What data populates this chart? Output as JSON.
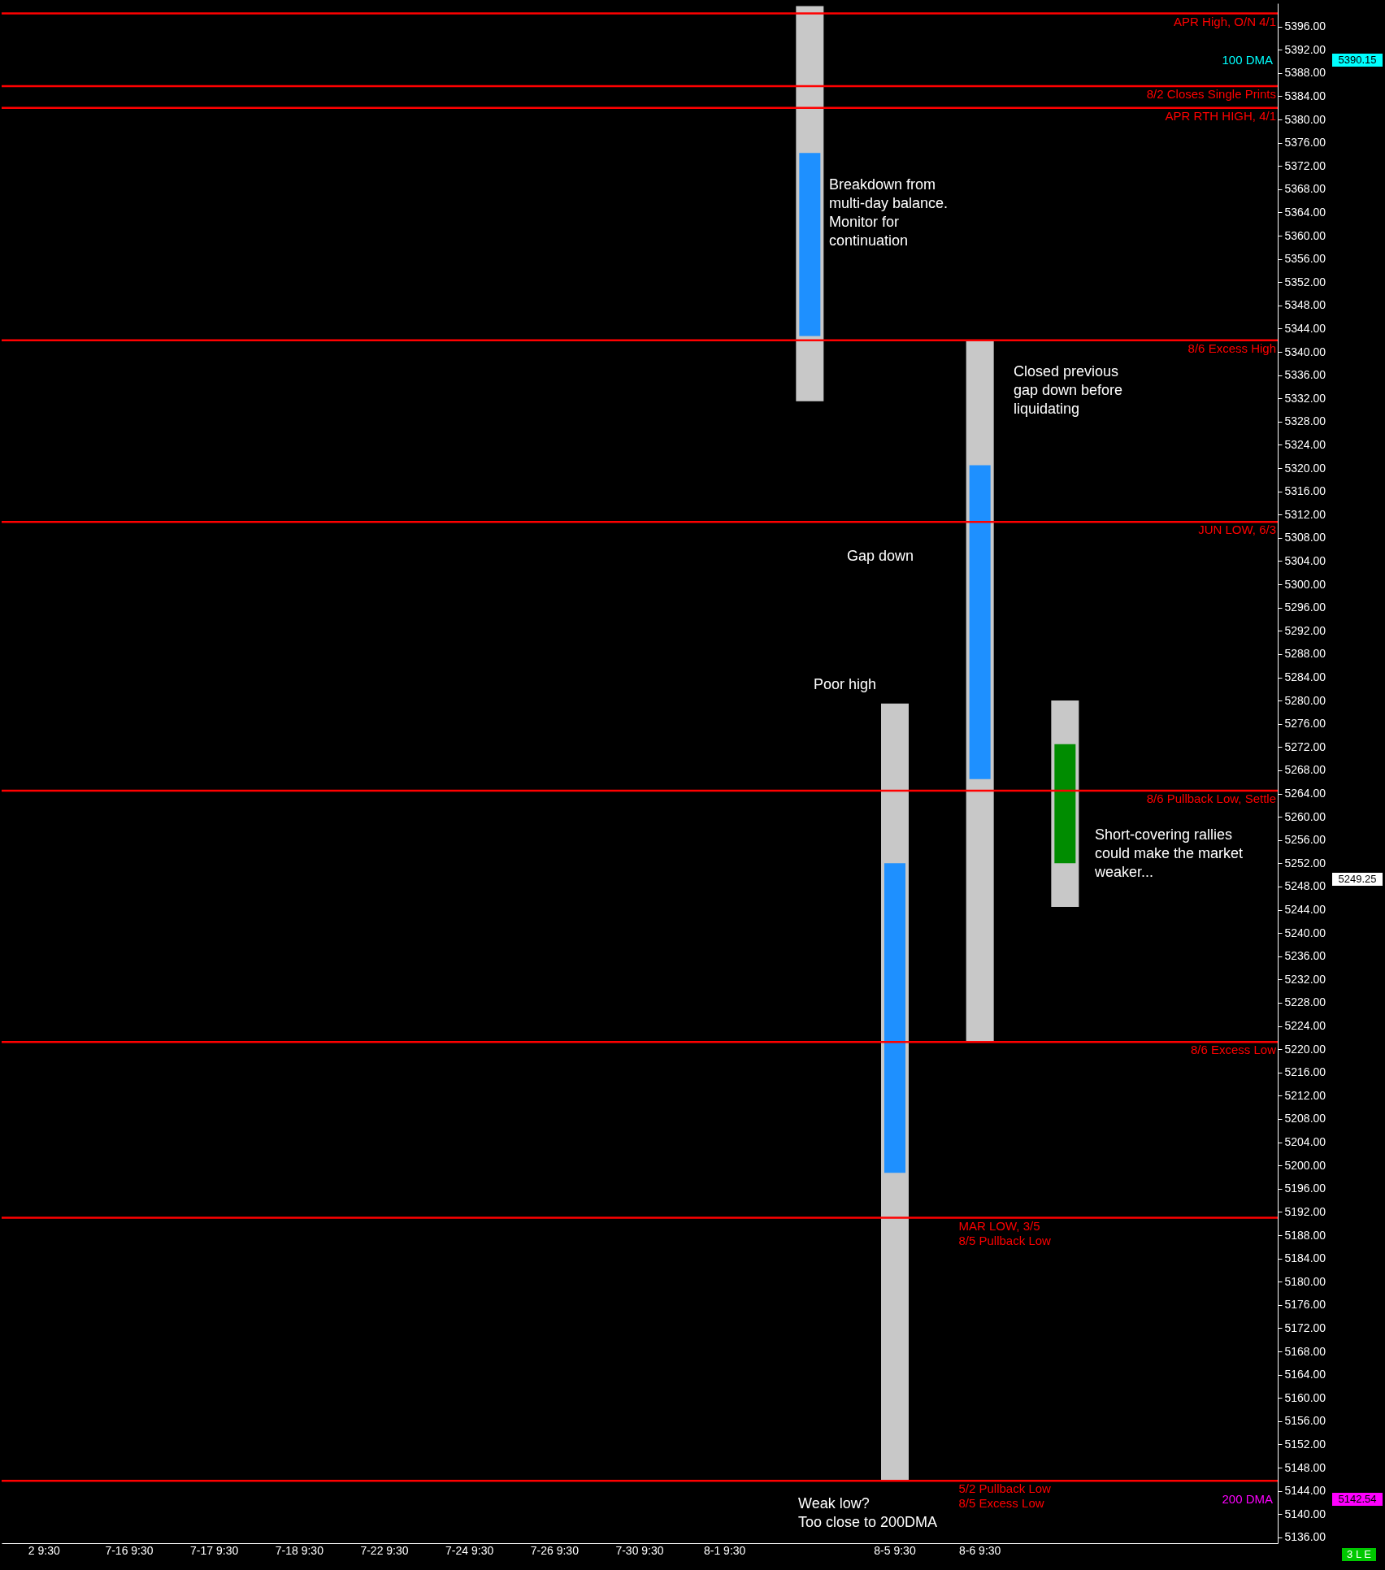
{
  "chart_data": {
    "type": "bar",
    "categories": [
      "2 9:30",
      "7-16 9:30",
      "7-17 9:30",
      "7-18 9:30",
      "7-22 9:30",
      "7-24 9:30",
      "7-26 9:30",
      "7-30 9:30",
      "8-1 9:30",
      null,
      "8-5 9:30",
      "8-6 9:30",
      null,
      null,
      null
    ],
    "series": [
      {
        "color": "#c8c8c8",
        "base": [
          null,
          null,
          null,
          null,
          null,
          null,
          null,
          null,
          null,
          5331.5,
          5145.75,
          5221.25,
          5244.5,
          null,
          null
        ],
        "values": [
          null,
          null,
          null,
          null,
          null,
          null,
          null,
          null,
          null,
          68,
          133.75,
          120.75,
          35.5,
          null,
          null
        ]
      },
      {
        "color": "#1e90ff",
        "base": [
          null,
          null,
          null,
          null,
          null,
          null,
          null,
          null,
          null,
          5342.75,
          5198.75,
          5266.5,
          null,
          null,
          null
        ],
        "values": [
          null,
          null,
          null,
          null,
          null,
          null,
          null,
          null,
          null,
          31.5,
          53.25,
          54,
          null,
          null,
          null
        ]
      },
      {
        "color": "#008c00",
        "base": [
          null,
          null,
          null,
          null,
          null,
          null,
          null,
          null,
          null,
          null,
          null,
          null,
          5252,
          null,
          null
        ],
        "values": [
          null,
          null,
          null,
          null,
          null,
          null,
          null,
          null,
          null,
          null,
          null,
          null,
          20.5,
          null,
          null
        ]
      }
    ],
    "ylim": [
      5135,
      5400
    ],
    "yticks": [
      {
        "value": 5136,
        "label": "5136.00"
      },
      {
        "value": 5140,
        "label": "5140.00"
      },
      {
        "value": 5144,
        "label": "5144.00"
      },
      {
        "value": 5148,
        "label": "5148.00"
      },
      {
        "value": 5152,
        "label": "5152.00"
      },
      {
        "value": 5156,
        "label": "5156.00"
      },
      {
        "value": 5160,
        "label": "5160.00"
      },
      {
        "value": 5164,
        "label": "5164.00"
      },
      {
        "value": 5168,
        "label": "5168.00"
      },
      {
        "value": 5172,
        "label": "5172.00"
      },
      {
        "value": 5176,
        "label": "5176.00"
      },
      {
        "value": 5180,
        "label": "5180.00"
      },
      {
        "value": 5184,
        "label": "5184.00"
      },
      {
        "value": 5188,
        "label": "5188.00"
      },
      {
        "value": 5192,
        "label": "5192.00"
      },
      {
        "value": 5196,
        "label": "5196.00"
      },
      {
        "value": 5200,
        "label": "5200.00"
      },
      {
        "value": 5204,
        "label": "5204.00"
      },
      {
        "value": 5208,
        "label": "5208.00"
      },
      {
        "value": 5212,
        "label": "5212.00"
      },
      {
        "value": 5216,
        "label": "5216.00"
      },
      {
        "value": 5220,
        "label": "5220.00"
      },
      {
        "value": 5224,
        "label": "5224.00"
      },
      {
        "value": 5228,
        "label": "5228.00"
      },
      {
        "value": 5232,
        "label": "5232.00"
      },
      {
        "value": 5236,
        "label": "5236.00"
      },
      {
        "value": 5240,
        "label": "5240.00"
      },
      {
        "value": 5244,
        "label": "5244.00"
      },
      {
        "value": 5248,
        "label": "5248.00"
      },
      {
        "value": 5252,
        "label": "5252.00"
      },
      {
        "value": 5256,
        "label": "5256.00"
      },
      {
        "value": 5260,
        "label": "5260.00"
      },
      {
        "value": 5264,
        "label": "5264.00"
      },
      {
        "value": 5268,
        "label": "5268.00"
      },
      {
        "value": 5272,
        "label": "5272.00"
      },
      {
        "value": 5276,
        "label": "5276.00"
      },
      {
        "value": 5280,
        "label": "5280.00"
      },
      {
        "value": 5284,
        "label": "5284.00"
      },
      {
        "value": 5288,
        "label": "5288.00"
      },
      {
        "value": 5292,
        "label": "5292.00"
      },
      {
        "value": 5296,
        "label": "5296.00"
      },
      {
        "value": 5300,
        "label": "5300.00"
      },
      {
        "value": 5304,
        "label": "5304.00"
      },
      {
        "value": 5308,
        "label": "5308.00"
      },
      {
        "value": 5312,
        "label": "5312.00"
      },
      {
        "value": 5316,
        "label": "5316.00"
      },
      {
        "value": 5320,
        "label": "5320.00"
      },
      {
        "value": 5324,
        "label": "5324.00"
      },
      {
        "value": 5328,
        "label": "5328.00"
      },
      {
        "value": 5332,
        "label": "5332.00"
      },
      {
        "value": 5336,
        "label": "5336.00"
      },
      {
        "value": 5340,
        "label": "5340.00"
      },
      {
        "value": 5344,
        "label": "5344.00"
      },
      {
        "value": 5348,
        "label": "5348.00"
      },
      {
        "value": 5352,
        "label": "5352.00"
      },
      {
        "value": 5356,
        "label": "5356.00"
      },
      {
        "value": 5360,
        "label": "5360.00"
      },
      {
        "value": 5364,
        "label": "5364.00"
      },
      {
        "value": 5368,
        "label": "5368.00"
      },
      {
        "value": 5372,
        "label": "5372.00"
      },
      {
        "value": 5376,
        "label": "5376.00"
      },
      {
        "value": 5380,
        "label": "5380.00"
      },
      {
        "value": 5384,
        "label": "5384.00"
      },
      {
        "value": 5388,
        "label": "5388.00"
      },
      {
        "value": 5392,
        "label": "5392.00"
      },
      {
        "value": 5396,
        "label": "5396.00"
      }
    ],
    "ref_lines": [
      {
        "axis": "y",
        "value": 5398.25,
        "label": "APR High, O/N 4/1",
        "color": "#ff0000"
      },
      {
        "axis": "y",
        "value": 5385.75,
        "label": "8/2 Closes Single Prints",
        "color": "#ff0000"
      },
      {
        "axis": "y",
        "value": 5382,
        "label": "APR RTH HIGH, 4/1",
        "color": "#ff0000"
      },
      {
        "axis": "y",
        "value": 5342,
        "label": "8/6 Excess High",
        "color": "#ff0000"
      },
      {
        "axis": "y",
        "value": 5310.75,
        "label": "JUN LOW, 6/3",
        "color": "#ff0000"
      },
      {
        "axis": "y",
        "value": 5264.5,
        "label": "8/6 Pullback Low, Settle",
        "color": "#ff0000"
      },
      {
        "axis": "y",
        "value": 5221.25,
        "label": "8/6 Excess Low",
        "color": "#ff0000"
      },
      {
        "axis": "y",
        "value": 5191,
        "label": "MAR LOW, 3/5\n8/5 Pullback Low",
        "color": "#ff0000"
      },
      {
        "axis": "y",
        "value": 5145.75,
        "label": "5/2 Pullback Low\n8/5 Excess Low",
        "color": "#ff0000"
      }
    ],
    "annotations": [
      "Breakdown from\nmulti-day balance.\nMonitor for\ncontinuation",
      "Closed previous\ngap down before\nliquidating",
      "Gap down",
      "Poor high",
      "Short-covering rallies\ncould make the market\nweaker...",
      "Weak low?\nToo close to 200DMA",
      "5249.25",
      "3 L E",
      "100 DMA",
      "5390.15",
      "200 DMA",
      "5142.54"
    ]
  }
}
